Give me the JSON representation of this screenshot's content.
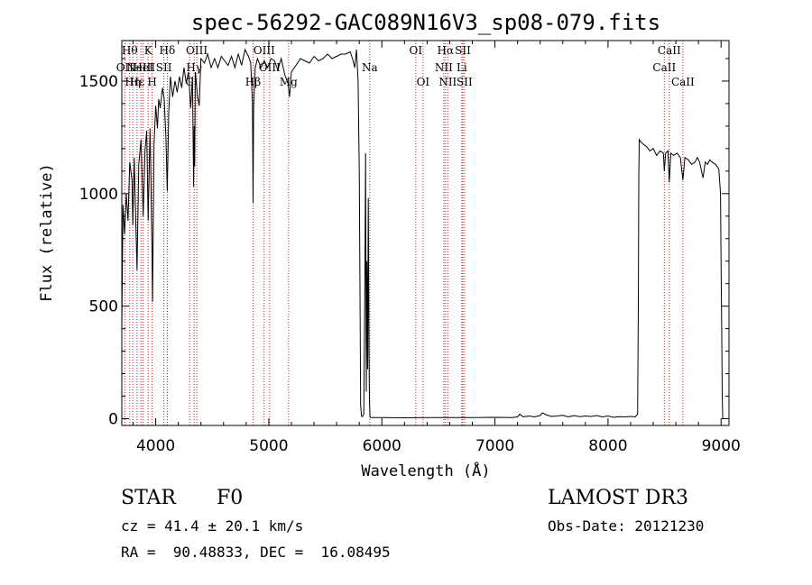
{
  "colors": {
    "line": "#000000",
    "marker": "#b22222"
  },
  "chart_data": {
    "type": "line",
    "title": "spec-56292-GAC089N16V3_sp08-079.fits",
    "xlabel": "Wavelength (Å)",
    "ylabel": "Flux (relative)",
    "xlim": [
      3700,
      9070
    ],
    "ylim": [
      -30,
      1680
    ],
    "xticks": [
      4000,
      5000,
      6000,
      7000,
      8000,
      9000
    ],
    "yticks": [
      0,
      500,
      1000,
      1500
    ],
    "xtick_labels": [
      "4000",
      "5000",
      "6000",
      "7000",
      "8000",
      "9000"
    ],
    "ytick_labels": [
      "0",
      "500",
      "1000",
      "1500"
    ],
    "series": [
      {
        "name": "flux",
        "points": [
          [
            3700,
            400
          ],
          [
            3710,
            950
          ],
          [
            3725,
            820
          ],
          [
            3740,
            1000
          ],
          [
            3755,
            880
          ],
          [
            3770,
            1140
          ],
          [
            3790,
            1060
          ],
          [
            3797,
            860
          ],
          [
            3810,
            1160
          ],
          [
            3820,
            950
          ],
          [
            3835,
            660
          ],
          [
            3850,
            1130
          ],
          [
            3870,
            1240
          ],
          [
            3889,
            900
          ],
          [
            3905,
            1190
          ],
          [
            3920,
            1280
          ],
          [
            3933,
            880
          ],
          [
            3950,
            1290
          ],
          [
            3968,
            730
          ],
          [
            3972,
            520
          ],
          [
            3985,
            1220
          ],
          [
            4000,
            1390
          ],
          [
            4015,
            1290
          ],
          [
            4026,
            1420
          ],
          [
            4040,
            1380
          ],
          [
            4060,
            1470
          ],
          [
            4075,
            1420
          ],
          [
            4090,
            1250
          ],
          [
            4102,
            1010
          ],
          [
            4115,
            1360
          ],
          [
            4130,
            1520
          ],
          [
            4150,
            1430
          ],
          [
            4170,
            1500
          ],
          [
            4190,
            1450
          ],
          [
            4210,
            1520
          ],
          [
            4230,
            1470
          ],
          [
            4250,
            1560
          ],
          [
            4270,
            1490
          ],
          [
            4290,
            1540
          ],
          [
            4310,
            1380
          ],
          [
            4325,
            1520
          ],
          [
            4335,
            1030
          ],
          [
            4340,
            1300
          ],
          [
            4345,
            1120
          ],
          [
            4350,
            1540
          ],
          [
            4370,
            1430
          ],
          [
            4385,
            1390
          ],
          [
            4400,
            1600
          ],
          [
            4430,
            1580
          ],
          [
            4460,
            1620
          ],
          [
            4490,
            1560
          ],
          [
            4520,
            1600
          ],
          [
            4550,
            1560
          ],
          [
            4580,
            1610
          ],
          [
            4610,
            1590
          ],
          [
            4640,
            1570
          ],
          [
            4670,
            1610
          ],
          [
            4700,
            1560
          ],
          [
            4730,
            1620
          ],
          [
            4760,
            1570
          ],
          [
            4790,
            1640
          ],
          [
            4820,
            1610
          ],
          [
            4840,
            1580
          ],
          [
            4855,
            1400
          ],
          [
            4861,
            960
          ],
          [
            4866,
            1380
          ],
          [
            4880,
            1560
          ],
          [
            4900,
            1600
          ],
          [
            4930,
            1560
          ],
          [
            4960,
            1590
          ],
          [
            4990,
            1560
          ],
          [
            5020,
            1600
          ],
          [
            5050,
            1590
          ],
          [
            5080,
            1550
          ],
          [
            5110,
            1600
          ],
          [
            5140,
            1530
          ],
          [
            5170,
            1490
          ],
          [
            5183,
            1430
          ],
          [
            5200,
            1540
          ],
          [
            5240,
            1570
          ],
          [
            5280,
            1600
          ],
          [
            5320,
            1590
          ],
          [
            5360,
            1580
          ],
          [
            5400,
            1610
          ],
          [
            5440,
            1590
          ],
          [
            5480,
            1600
          ],
          [
            5520,
            1620
          ],
          [
            5560,
            1600
          ],
          [
            5600,
            1610
          ],
          [
            5640,
            1620
          ],
          [
            5680,
            1620
          ],
          [
            5720,
            1630
          ],
          [
            5740,
            1600
          ],
          [
            5760,
            1560
          ],
          [
            5775,
            1640
          ],
          [
            5790,
            1500
          ],
          [
            5800,
            1100
          ],
          [
            5807,
            500
          ],
          [
            5812,
            60
          ],
          [
            5820,
            10
          ],
          [
            5830,
            10
          ],
          [
            5840,
            20
          ],
          [
            5850,
            650
          ],
          [
            5856,
            1180
          ],
          [
            5862,
            120
          ],
          [
            5868,
            700
          ],
          [
            5874,
            220
          ],
          [
            5880,
            980
          ],
          [
            5886,
            300
          ],
          [
            5890,
            80
          ],
          [
            5895,
            10
          ],
          [
            5900,
            5
          ],
          [
            6000,
            5
          ],
          [
            6200,
            4
          ],
          [
            6400,
            5
          ],
          [
            6600,
            5
          ],
          [
            6800,
            5
          ],
          [
            7000,
            6
          ],
          [
            7150,
            5
          ],
          [
            7200,
            8
          ],
          [
            7220,
            20
          ],
          [
            7250,
            8
          ],
          [
            7300,
            12
          ],
          [
            7350,
            8
          ],
          [
            7400,
            14
          ],
          [
            7420,
            26
          ],
          [
            7450,
            18
          ],
          [
            7500,
            10
          ],
          [
            7550,
            12
          ],
          [
            7600,
            15
          ],
          [
            7650,
            8
          ],
          [
            7700,
            14
          ],
          [
            7750,
            9
          ],
          [
            7800,
            12
          ],
          [
            7850,
            10
          ],
          [
            7900,
            14
          ],
          [
            7950,
            8
          ],
          [
            8000,
            12
          ],
          [
            8050,
            6
          ],
          [
            8100,
            9
          ],
          [
            8150,
            8
          ],
          [
            8200,
            10
          ],
          [
            8240,
            8
          ],
          [
            8262,
            20
          ],
          [
            8268,
            500
          ],
          [
            8272,
            1060
          ],
          [
            8276,
            1240
          ],
          [
            8290,
            1230
          ],
          [
            8310,
            1220
          ],
          [
            8340,
            1210
          ],
          [
            8370,
            1190
          ],
          [
            8400,
            1200
          ],
          [
            8430,
            1170
          ],
          [
            8460,
            1190
          ],
          [
            8490,
            1180
          ],
          [
            8498,
            1100
          ],
          [
            8510,
            1180
          ],
          [
            8530,
            1190
          ],
          [
            8542,
            1050
          ],
          [
            8555,
            1180
          ],
          [
            8580,
            1170
          ],
          [
            8610,
            1180
          ],
          [
            8640,
            1160
          ],
          [
            8662,
            1060
          ],
          [
            8680,
            1160
          ],
          [
            8710,
            1150
          ],
          [
            8740,
            1130
          ],
          [
            8770,
            1140
          ],
          [
            8790,
            1160
          ],
          [
            8810,
            1140
          ],
          [
            8840,
            1070
          ],
          [
            8860,
            1140
          ],
          [
            8880,
            1130
          ],
          [
            8900,
            1150
          ],
          [
            8920,
            1140
          ],
          [
            8950,
            1130
          ],
          [
            8980,
            1110
          ],
          [
            8995,
            1000
          ],
          [
            9000,
            700
          ],
          [
            9005,
            400
          ],
          [
            9010,
            100
          ],
          [
            9015,
            0
          ]
        ]
      }
    ],
    "lines": [
      {
        "wave": 3727,
        "label": "OII",
        "row": 1
      },
      {
        "wave": 3770,
        "label": "Hθ",
        "row": 0
      },
      {
        "wave": 3797,
        "label": "Hη",
        "row": 2
      },
      {
        "wave": 3835,
        "label": "Hε",
        "row": 2
      },
      {
        "wave": 3869,
        "label": "NeIII",
        "row": 1
      },
      {
        "wave": 3889,
        "label": "HeI",
        "row": 1
      },
      {
        "wave": 3933,
        "label": "K",
        "row": 0
      },
      {
        "wave": 3968,
        "label": "H",
        "row": 2
      },
      {
        "wave": 4072,
        "label": "SII",
        "row": 1
      },
      {
        "wave": 4102,
        "label": "Hδ",
        "row": 0
      },
      {
        "wave": 4300,
        "label": "G",
        "row": 2
      },
      {
        "wave": 4340,
        "label": "Hγ",
        "row": 1
      },
      {
        "wave": 4363,
        "label": "OIII",
        "row": 0
      },
      {
        "wave": 4861,
        "label": "Hβ",
        "row": 2
      },
      {
        "wave": 4959,
        "label": "OIII",
        "row": 0
      },
      {
        "wave": 5007,
        "label": "OIII",
        "row": 1
      },
      {
        "wave": 5175,
        "label": "Mg",
        "row": 2
      },
      {
        "wave": 5893,
        "label": "Na",
        "row": 1
      },
      {
        "wave": 6300,
        "label": "OI",
        "row": 0
      },
      {
        "wave": 6364,
        "label": "OI",
        "row": 2
      },
      {
        "wave": 6548,
        "label": "NII",
        "row": 1
      },
      {
        "wave": 6563,
        "label": "Hα",
        "row": 0
      },
      {
        "wave": 6583,
        "label": "NII",
        "row": 2
      },
      {
        "wave": 6707,
        "label": "Li",
        "row": 1
      },
      {
        "wave": 6716,
        "label": "SII",
        "row": 0
      },
      {
        "wave": 6731,
        "label": "SII",
        "row": 2
      },
      {
        "wave": 8498,
        "label": "CaII",
        "row": 1
      },
      {
        "wave": 8542,
        "label": "CaII",
        "row": 0
      },
      {
        "wave": 8662,
        "label": "CaII",
        "row": 2
      }
    ]
  },
  "info": {
    "class": "STAR",
    "subclass": "F0",
    "cz": "cz = 41.4 ± 20.1 km/s",
    "radec": "RA =  90.48833, DEC =  16.08495",
    "survey": "LAMOST DR3",
    "obs_date": "Obs-Date: 20121230"
  }
}
